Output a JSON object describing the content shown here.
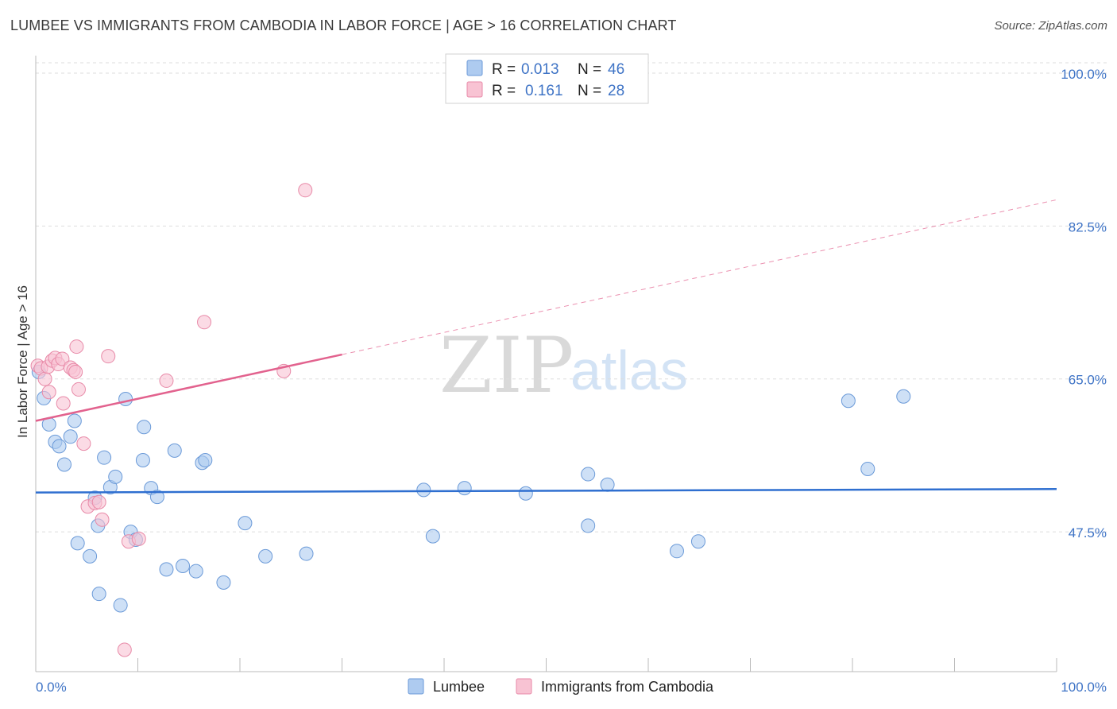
{
  "title": "LUMBEE VS IMMIGRANTS FROM CAMBODIA IN LABOR FORCE | AGE > 16 CORRELATION CHART",
  "source": "Source: ZipAtlas.com",
  "watermark": {
    "part1": "ZIP",
    "part2": "atlas"
  },
  "colors": {
    "lumbee_fill": "#aecbf0",
    "lumbee_stroke": "#6b9ad8",
    "lumbee_line": "#2f6fd0",
    "cambodia_fill": "#f8c3d3",
    "cambodia_stroke": "#e88aa8",
    "cambodia_line": "#e2628e",
    "grid": "#dddddd",
    "axis_text": "#3f74c6"
  },
  "legend": {
    "lumbee": {
      "r_label": "R =",
      "r_value": "0.013",
      "n_label": "N =",
      "n_value": "46"
    },
    "cambodia": {
      "r_label": "R =",
      "r_value": "0.161",
      "n_label": "N =",
      "n_value": "28"
    }
  },
  "chart_data": {
    "type": "scatter",
    "title": "LUMBEE VS IMMIGRANTS FROM CAMBODIA IN LABOR FORCE | AGE > 16 CORRELATION CHART",
    "xlabel": "",
    "ylabel": "In Labor Force | Age > 16",
    "xlim": [
      0,
      100
    ],
    "ylim": [
      31.5,
      102
    ],
    "x_tick_labels": [
      "0.0%",
      "100.0%"
    ],
    "y_ticks": [
      47.5,
      65.0,
      82.5,
      100.0
    ],
    "y_tick_labels": [
      "47.5%",
      "65.0%",
      "82.5%",
      "100.0%"
    ],
    "grid": true,
    "series": [
      {
        "name": "Lumbee",
        "trend": {
          "x0": 0,
          "y0": 52.0,
          "x1": 100,
          "y1": 52.4,
          "dashed_from": null
        },
        "points": [
          [
            0.3,
            65.8
          ],
          [
            0.8,
            62.8
          ],
          [
            1.3,
            59.8
          ],
          [
            1.9,
            57.8
          ],
          [
            2.3,
            57.3
          ],
          [
            2.8,
            55.2
          ],
          [
            3.4,
            58.4
          ],
          [
            3.8,
            60.2
          ],
          [
            4.1,
            46.2
          ],
          [
            5.3,
            44.7
          ],
          [
            5.8,
            51.4
          ],
          [
            6.1,
            48.2
          ],
          [
            6.2,
            40.4
          ],
          [
            6.7,
            56.0
          ],
          [
            7.3,
            52.6
          ],
          [
            7.8,
            53.8
          ],
          [
            8.3,
            39.1
          ],
          [
            8.8,
            62.7
          ],
          [
            9.3,
            47.5
          ],
          [
            9.8,
            46.6
          ],
          [
            10.5,
            55.7
          ],
          [
            10.6,
            59.5
          ],
          [
            11.3,
            52.5
          ],
          [
            11.9,
            51.5
          ],
          [
            12.8,
            43.2
          ],
          [
            13.6,
            56.8
          ],
          [
            14.4,
            43.6
          ],
          [
            15.7,
            43.0
          ],
          [
            16.3,
            55.4
          ],
          [
            16.6,
            55.7
          ],
          [
            18.4,
            41.7
          ],
          [
            20.5,
            48.5
          ],
          [
            22.5,
            44.7
          ],
          [
            26.5,
            45.0
          ],
          [
            38.0,
            52.3
          ],
          [
            38.9,
            47.0
          ],
          [
            42.0,
            52.5
          ],
          [
            48.0,
            51.9
          ],
          [
            54.1,
            48.2
          ],
          [
            54.1,
            54.1
          ],
          [
            56.0,
            52.9
          ],
          [
            62.8,
            45.3
          ],
          [
            64.9,
            46.4
          ],
          [
            79.6,
            62.5
          ],
          [
            81.5,
            54.7
          ],
          [
            85.0,
            63.0
          ]
        ]
      },
      {
        "name": "Immigrants from Cambodia",
        "trend": {
          "x0": 0,
          "y0": 60.2,
          "x1": 100,
          "y1": 85.5,
          "dashed_from": 30
        },
        "points": [
          [
            0.2,
            66.5
          ],
          [
            0.5,
            66.2
          ],
          [
            0.9,
            65.0
          ],
          [
            1.2,
            66.4
          ],
          [
            1.3,
            63.5
          ],
          [
            1.6,
            67.1
          ],
          [
            1.9,
            67.4
          ],
          [
            2.2,
            66.7
          ],
          [
            2.6,
            67.3
          ],
          [
            2.7,
            62.2
          ],
          [
            3.4,
            66.3
          ],
          [
            3.7,
            66.0
          ],
          [
            3.9,
            65.8
          ],
          [
            4.0,
            68.7
          ],
          [
            4.2,
            63.8
          ],
          [
            4.7,
            57.6
          ],
          [
            5.1,
            50.4
          ],
          [
            5.8,
            50.8
          ],
          [
            6.2,
            50.9
          ],
          [
            6.5,
            48.9
          ],
          [
            7.1,
            67.6
          ],
          [
            9.1,
            46.4
          ],
          [
            10.1,
            46.7
          ],
          [
            12.8,
            64.8
          ],
          [
            16.5,
            71.5
          ],
          [
            24.3,
            65.9
          ],
          [
            26.4,
            86.6
          ],
          [
            8.7,
            34.0
          ]
        ]
      }
    ]
  },
  "bottom_legend": {
    "lumbee": "Lumbee",
    "cambodia": "Immigrants from Cambodia"
  }
}
